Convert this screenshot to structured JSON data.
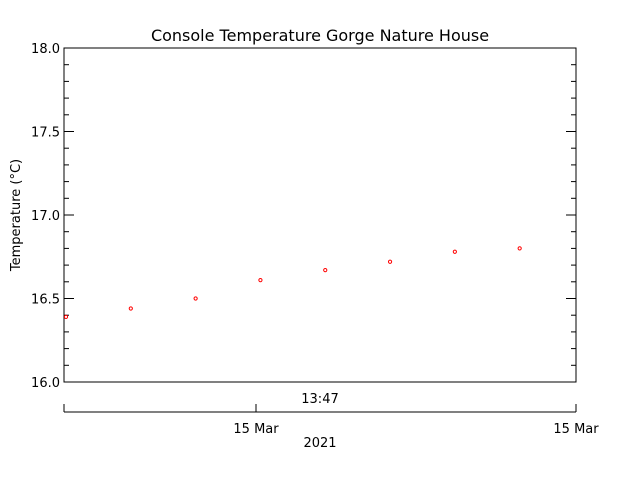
{
  "chart_data": {
    "type": "scatter",
    "title": "Console Temperature Gorge Nature House",
    "ylabel": "Temperature (°C)",
    "ylim": [
      16.0,
      18.0
    ],
    "y_ticks": [
      "16.0",
      "16.5",
      "17.0",
      "17.5",
      "18.0"
    ],
    "time_label": "13:47",
    "x_tick_labels": [
      "15 Mar",
      "15 Mar"
    ],
    "x_year_label": "2021",
    "marker_color": "#ff0000",
    "axis_color": "#000000",
    "points": [
      16.39,
      16.44,
      16.5,
      16.61,
      16.67,
      16.72,
      16.78,
      16.8
    ]
  }
}
